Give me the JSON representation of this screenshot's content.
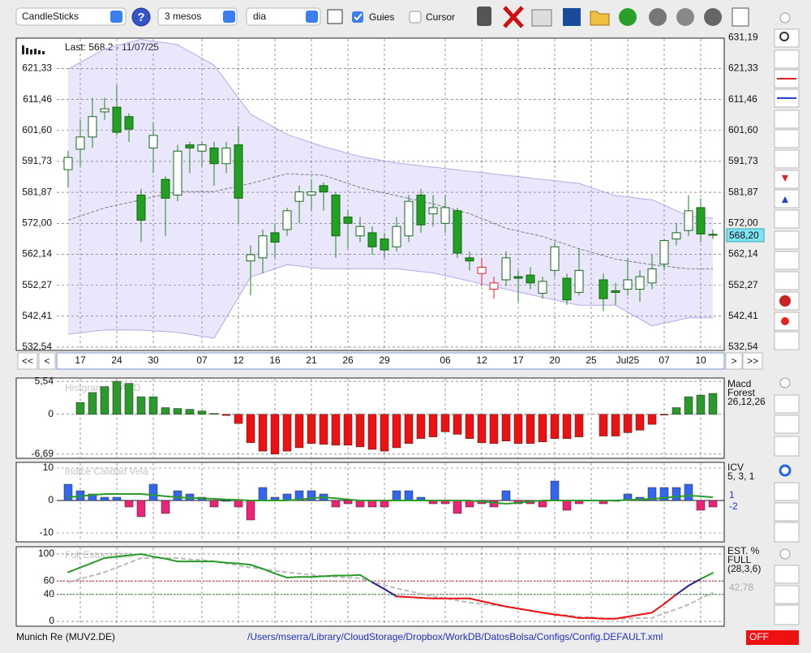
{
  "toolbar": {
    "chart_type": "CandleSticks",
    "period": "3 mesos",
    "interval": "dia",
    "guides": "Guies",
    "cursor": "Cursor"
  },
  "price": {
    "info": "Last: 568.2 - 11/07/25",
    "ylim": [
      531.5,
      631.0
    ],
    "yticks": [
      {
        "value": 532.54,
        "label": "532,54"
      },
      {
        "value": 542.41,
        "label": "542,41"
      },
      {
        "value": 552.27,
        "label": "552,27"
      },
      {
        "value": 562.14,
        "label": "562,14"
      },
      {
        "value": 572.0,
        "label": "572,00"
      },
      {
        "value": 581.87,
        "label": "581,87"
      },
      {
        "value": 591.73,
        "label": "591,73"
      },
      {
        "value": 601.6,
        "label": "601,60"
      },
      {
        "value": 611.46,
        "label": "611,46"
      },
      {
        "value": 621.33,
        "label": "621,33"
      },
      {
        "value": 631.19,
        "label": "631,19"
      }
    ],
    "last": {
      "value": 568.2,
      "label": "568,20"
    },
    "dates": [
      null,
      "17",
      null,
      null,
      "24",
      null,
      null,
      "30",
      null,
      null,
      null,
      "07",
      null,
      null,
      "12",
      null,
      null,
      "16",
      null,
      null,
      "21",
      null,
      null,
      "26",
      null,
      null,
      "29",
      null,
      null,
      null,
      null,
      "06",
      null,
      null,
      "12",
      null,
      null,
      "17",
      null,
      null,
      "20",
      null,
      null,
      "25",
      null,
      null,
      "Jul25",
      null,
      null,
      "07",
      null,
      null,
      "10",
      null
    ],
    "candles": [
      {
        "o": 589.1,
        "h": 595.1,
        "l": 583.4,
        "c": 593.0
      },
      {
        "o": 595.6,
        "h": 605,
        "l": 590,
        "c": 599.5
      },
      {
        "o": 599.5,
        "h": 612,
        "l": 596,
        "c": 606.0
      },
      {
        "o": 607.5,
        "h": 612,
        "l": 605,
        "c": 608.5
      },
      {
        "o": 609,
        "h": 616,
        "l": 600,
        "c": 601
      },
      {
        "o": 606,
        "h": 607,
        "l": 598,
        "c": 602
      },
      {
        "o": 581,
        "h": 583,
        "l": 566,
        "c": 573
      },
      {
        "o": 596,
        "h": 604,
        "l": 588,
        "c": 600
      },
      {
        "o": 586,
        "h": 587,
        "l": 568,
        "c": 580
      },
      {
        "o": 581,
        "h": 597,
        "l": 579,
        "c": 595
      },
      {
        "o": 597,
        "h": 598,
        "l": 588,
        "c": 596
      },
      {
        "o": 595,
        "h": 598,
        "l": 590,
        "c": 597
      },
      {
        "o": 596,
        "h": 598,
        "l": 584,
        "c": 591
      },
      {
        "o": 591,
        "h": 598,
        "l": 588,
        "c": 596
      },
      {
        "o": 597,
        "h": 603,
        "l": 572,
        "c": 580
      },
      {
        "o": 560,
        "h": 565,
        "l": 549,
        "c": 562
      },
      {
        "o": 561,
        "h": 570,
        "l": 556,
        "c": 568
      },
      {
        "o": 569,
        "h": 572,
        "l": 561,
        "c": 566
      },
      {
        "o": 570,
        "h": 577,
        "l": 568,
        "c": 576
      },
      {
        "o": 579,
        "h": 584,
        "l": 572,
        "c": 582
      },
      {
        "o": 581,
        "h": 586,
        "l": 576,
        "c": 582
      },
      {
        "o": 584,
        "h": 585,
        "l": 576,
        "c": 582
      },
      {
        "o": 581,
        "h": 582,
        "l": 561,
        "c": 568
      },
      {
        "o": 574,
        "h": 576,
        "l": 564,
        "c": 572
      },
      {
        "o": 568,
        "h": 574,
        "l": 566,
        "c": 571
      },
      {
        "o": 569,
        "h": 571,
        "l": 562,
        "c": 564.5
      },
      {
        "o": 567,
        "h": 569,
        "l": 561,
        "c": 563.5
      },
      {
        "o": 564.5,
        "h": 574,
        "l": 563,
        "c": 571
      },
      {
        "o": 568,
        "h": 581,
        "l": 566,
        "c": 579
      },
      {
        "o": 581,
        "h": 583,
        "l": 569,
        "c": 571.5
      },
      {
        "o": 575,
        "h": 581,
        "l": 571,
        "c": 577
      },
      {
        "o": 572,
        "h": 581,
        "l": 569,
        "c": 577
      },
      {
        "o": 576,
        "h": 577,
        "l": 561,
        "c": 562.5
      },
      {
        "o": 561,
        "h": 563,
        "l": 557,
        "c": 560
      },
      {
        "o": 558,
        "h": 561,
        "l": 552,
        "c": 556,
        "color": "#e0202a"
      },
      {
        "o": 553,
        "h": 555,
        "l": 548,
        "c": 551,
        "color": "#e0202a"
      },
      {
        "o": 554,
        "h": 563,
        "l": 552,
        "c": 561
      },
      {
        "o": 555,
        "h": 557,
        "l": 547,
        "c": 554.5
      },
      {
        "o": 555.5,
        "h": 558,
        "l": 551,
        "c": 553
      },
      {
        "o": 549.7,
        "h": 555,
        "l": 548,
        "c": 553.5
      },
      {
        "o": 557,
        "h": 566,
        "l": 555,
        "c": 564.5
      },
      {
        "o": 554.5,
        "h": 556,
        "l": 546,
        "c": 547.6
      },
      {
        "o": 550,
        "h": 564,
        "l": 549,
        "c": 557
      },
      null,
      {
        "o": 554,
        "h": 556,
        "l": 544,
        "c": 548
      },
      {
        "o": 550.5,
        "h": 553,
        "l": 546,
        "c": 550
      },
      {
        "o": 551,
        "h": 561,
        "l": 549,
        "c": 554
      },
      {
        "o": 551,
        "h": 557,
        "l": 547,
        "c": 555
      },
      {
        "o": 553,
        "h": 562,
        "l": 551,
        "c": 557.5
      },
      {
        "o": 559,
        "h": 567,
        "l": 557,
        "c": 566.5
      },
      {
        "o": 567,
        "h": 572,
        "l": 565,
        "c": 569
      },
      {
        "o": 569.7,
        "h": 581,
        "l": 568,
        "c": 576
      },
      {
        "o": 577,
        "h": 580,
        "l": 566,
        "c": 568.6
      },
      {
        "o": 568.5,
        "h": 570,
        "l": 567,
        "c": 568.2
      }
    ],
    "band_upper": [
      621.1,
      623.3,
      625.4,
      627.6,
      628.6,
      629.6,
      630.6,
      630.0,
      629.5,
      628.9,
      626.7,
      624.6,
      622.4,
      617.2,
      612.0,
      606.8,
      604.6,
      602.5,
      600.3,
      599.0,
      597.7,
      596.4,
      595.4,
      594.3,
      593.3,
      592.6,
      591.9,
      591.2,
      590.8,
      590.3,
      589.9,
      589.5,
      589.0,
      588.6,
      588.2,
      587.7,
      587.3,
      586.9,
      586.4,
      586.0,
      585.6,
      585.1,
      584.7,
      583.4,
      582.1,
      580.8,
      580.4,
      579.9,
      579.5,
      577.8,
      576.0,
      574.3,
      574.0,
      573.6
    ],
    "band_middle": [
      573.0,
      574.3,
      575.6,
      576.9,
      577.8,
      578.6,
      579.5,
      580.4,
      581.2,
      582.1,
      582.1,
      582.1,
      582.1,
      583.0,
      583.8,
      584.7,
      585.7,
      586.8,
      587.8,
      587.6,
      587.5,
      587.3,
      586.0,
      584.7,
      583.4,
      582.5,
      581.7,
      580.8,
      579.9,
      579.1,
      578.2,
      577.2,
      576.1,
      575.1,
      573.5,
      572.0,
      570.4,
      569.5,
      568.7,
      567.8,
      566.5,
      565.2,
      563.9,
      562.8,
      561.7,
      560.6,
      560.0,
      559.4,
      558.8,
      558.4,
      557.9,
      557.5,
      557.5,
      557.5
    ],
    "band_lower": [
      536.7,
      537.1,
      537.6,
      538.0,
      538.0,
      538.0,
      538.0,
      537.7,
      537.5,
      537.2,
      536.6,
      536.0,
      535.4,
      541.9,
      548.4,
      554.9,
      556.2,
      557.5,
      558.8,
      558.4,
      557.9,
      557.5,
      557.5,
      557.5,
      557.5,
      557.5,
      557.5,
      557.5,
      557.1,
      556.6,
      556.2,
      555.3,
      554.5,
      553.6,
      552.7,
      551.9,
      551.0,
      550.1,
      549.3,
      548.4,
      547.6,
      546.7,
      545.9,
      545.9,
      545.9,
      545.9,
      543.7,
      541.5,
      539.3,
      540.2,
      541.0,
      541.9,
      541.9,
      541.9
    ]
  },
  "macd": {
    "title": "Histgrama MACD",
    "labels": [
      "Macd",
      "Forest",
      "26,12,26"
    ],
    "ylim": [
      -7.4,
      6.1
    ],
    "yticks": [
      {
        "value": -6.69,
        "label": "-6,69"
      },
      0,
      {
        "value": 5.54,
        "label": "5,54"
      }
    ],
    "positive_color": "#2a9a2a",
    "negative_color": "#ee1111",
    "values": [
      null,
      1.97,
      3.66,
      4.64,
      5.54,
      5.2,
      2.95,
      2.95,
      1.12,
      0.98,
      0.84,
      0.56,
      0.14,
      -0.2,
      -1.55,
      -4.78,
      -6.19,
      -6.69,
      -6.19,
      -5.62,
      -4.92,
      -5.06,
      -5.2,
      -5.2,
      -5.48,
      -5.9,
      -6.19,
      -5.62,
      -4.92,
      -4.08,
      -3.8,
      -2.95,
      -3.37,
      -4.08,
      -4.78,
      -4.92,
      -4.5,
      -4.92,
      -4.92,
      -4.64,
      -4.08,
      -4.08,
      -3.8,
      null,
      -3.66,
      -3.66,
      -3.09,
      -2.67,
      -1.69,
      -0.14,
      1.12,
      2.95,
      3.23,
      3.51
    ]
  },
  "icv": {
    "title": "Indice Calidad Vela",
    "labels": [
      "ICV",
      "5, 3, 1"
    ],
    "readout": [
      "1",
      "-2"
    ],
    "ylim": [
      -12.75,
      11.75
    ],
    "yticks": [
      -10,
      0,
      10
    ],
    "positive_color": "#3366ee",
    "negative_color": "#ee2277",
    "line_color": "#2a9a2a",
    "values": [
      5,
      3,
      2,
      1,
      1,
      -2,
      -5,
      5,
      -4,
      3,
      2,
      1,
      -2,
      0,
      -2,
      -6,
      4,
      1,
      2,
      3,
      3,
      2,
      -2,
      -1,
      -2,
      -2,
      -2,
      3,
      3,
      1,
      -1,
      -1,
      -4,
      -2,
      -1,
      -2,
      3,
      -1,
      -1,
      -2,
      6,
      -3,
      -1,
      null,
      -1,
      0,
      2,
      1,
      4,
      4,
      4,
      5,
      -3,
      -2
    ],
    "line": [
      1,
      1.3,
      1.7,
      2,
      2,
      2,
      2,
      1.7,
      1.3,
      1,
      0.8,
      0.7,
      0.5,
      0.3,
      0.2,
      0,
      0,
      0,
      0,
      0.3,
      0.7,
      1,
      0.7,
      0.3,
      0,
      0,
      0,
      0,
      0,
      0,
      0,
      0,
      0,
      0,
      -0.3,
      -0.7,
      -1,
      -0.7,
      -0.3,
      0,
      0,
      0,
      0,
      0,
      0,
      0,
      0.2,
      0.3,
      0.5,
      0.8,
      1.2,
      1.5,
      1.3,
      1
    ]
  },
  "stoch": {
    "title": "Full Estocastico",
    "labels": [
      "EST. %",
      "FULL",
      "(28,3,6)"
    ],
    "readout": "42,78",
    "ylim": [
      -7.2,
      110.8
    ],
    "yticks": [
      0,
      40,
      60,
      100
    ],
    "levels": [
      {
        "value": 60,
        "color": "#aa2222"
      },
      {
        "value": 40,
        "color": "#227722"
      }
    ],
    "colors": {
      "high": "#2a9a2a",
      "mid": "#222288",
      "low": "#ee1111",
      "signal": "#bbbbbb"
    },
    "k": [
      73,
      80,
      87,
      94,
      96,
      98,
      100,
      96,
      93,
      89,
      89,
      89,
      89,
      87,
      86,
      84,
      78,
      71,
      65,
      66,
      66,
      67,
      68,
      68,
      69,
      58,
      48,
      37,
      36,
      35,
      34,
      34,
      34,
      34,
      30,
      26,
      22,
      19,
      16,
      13,
      10,
      8,
      5,
      5,
      4,
      4,
      7,
      10,
      13,
      26,
      40,
      53,
      63,
      72
    ],
    "d": [
      58,
      63,
      68,
      73,
      80,
      87,
      94,
      94,
      94,
      94,
      92,
      91,
      89,
      86,
      83,
      80,
      78,
      75,
      73,
      71,
      69,
      67,
      66,
      65,
      64,
      59,
      54,
      49,
      45,
      41,
      37,
      34,
      31,
      28,
      26,
      24,
      22,
      19,
      16,
      13,
      11,
      9,
      7,
      6,
      5,
      4,
      4,
      5,
      5,
      12,
      18,
      25,
      34,
      42.78
    ]
  },
  "footer": {
    "symbol": "Munich Re (MUV2.DE)",
    "path": "/Users/mserra/Library/CloudStorage/Dropbox/WorkDB/DatosBolsa/Configs/Config.DEFAULT.xml",
    "status": "OFF"
  }
}
